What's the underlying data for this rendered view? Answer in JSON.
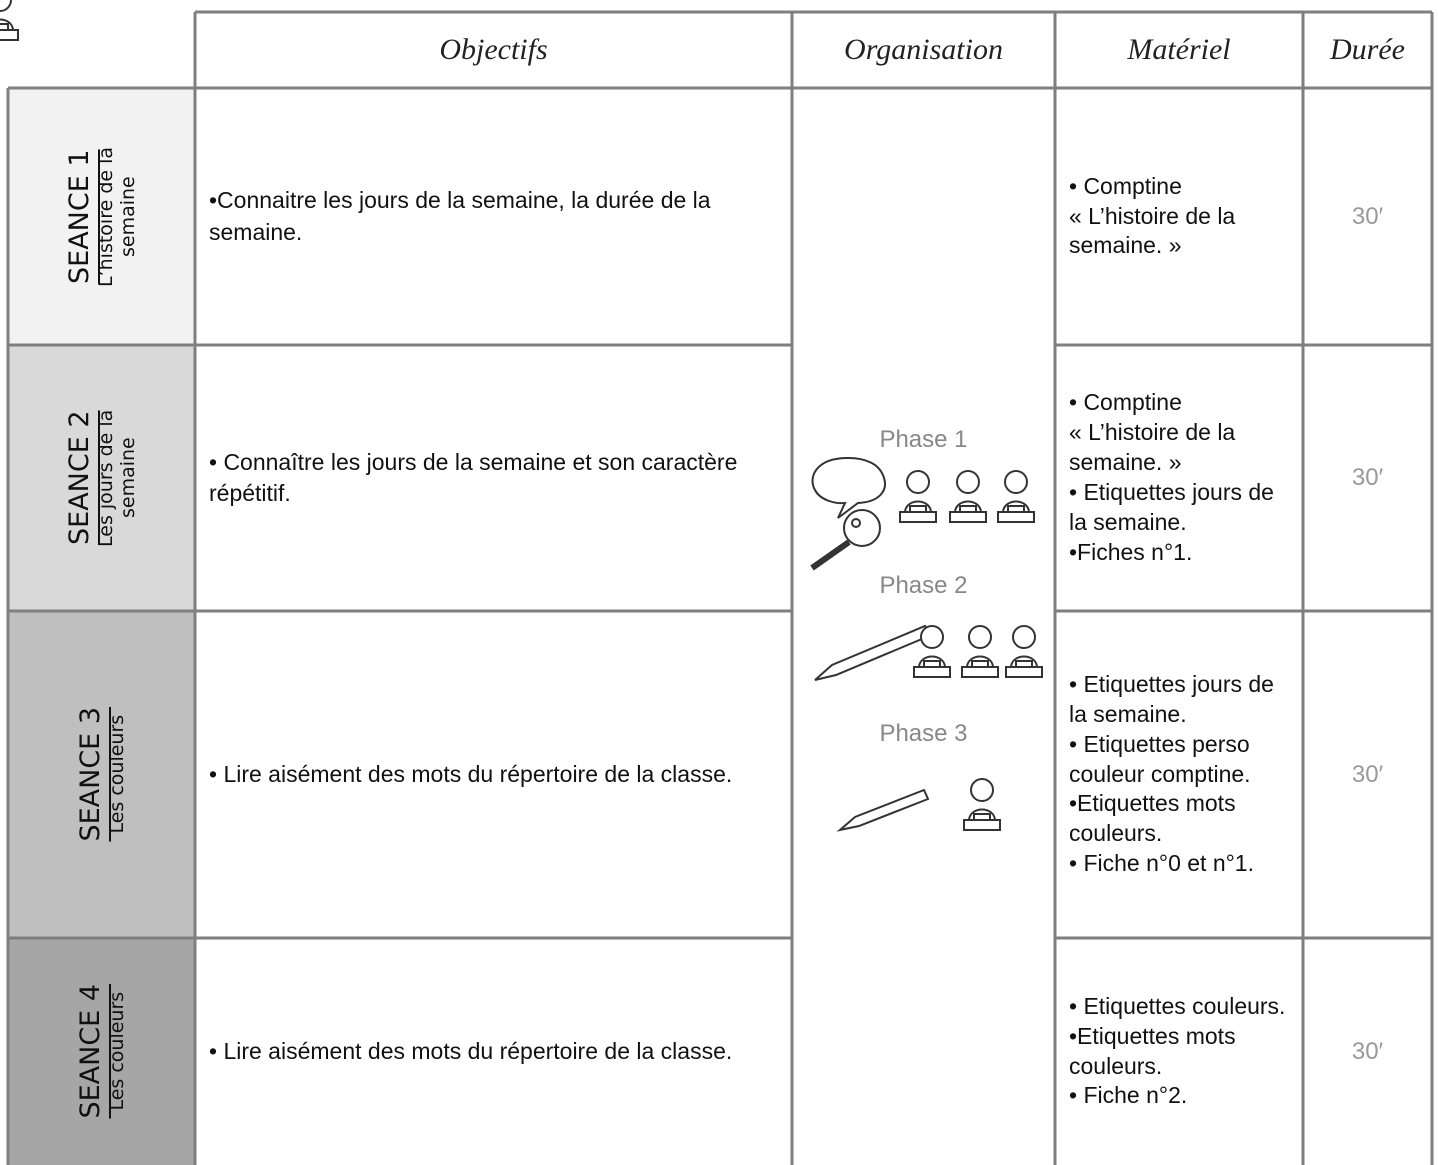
{
  "table": {
    "header": [
      "Objectifs",
      "Organisation",
      "Matériel",
      "Durée"
    ],
    "rows": [
      {
        "session": "SEANCE 1",
        "title": "L’histoire de la semaine",
        "objective": "•Connaitre les jours de la semaine, la durée de la semaine.",
        "material": [
          "• Comptine",
          "« L’histoire de la semaine. »"
        ],
        "duration": "30′"
      },
      {
        "session": "SEANCE 2",
        "title": "Les jours de la semaine",
        "objective": "• Connaître les jours de la semaine et son caractère répétitif.",
        "material": [
          "• Comptine",
          "« L’histoire de la semaine. »",
          "• Etiquettes jours de la semaine.",
          "•Fiches n°1."
        ],
        "duration": "30′"
      },
      {
        "session": "SEANCE 3",
        "title": "Les couleurs",
        "objective": "• Lire aisément des mots du répertoire de la classe.",
        "material": [
          "• Etiquettes jours de la semaine.",
          "• Etiquettes perso couleur comptine.",
          "•Etiquettes mots couleurs.",
          "• Fiche n°0 et n°1."
        ],
        "duration": "30′"
      },
      {
        "session": "SEANCE 4",
        "title": "Les couleurs",
        "objective": "• Lire aisément des mots du répertoire de la classe.",
        "material": [
          "• Etiquettes couleurs.",
          "•Etiquettes mots couleurs.",
          "• Fiche n°2."
        ],
        "duration": "30′"
      }
    ],
    "organisation": [
      "Phase 1",
      "Phase 2",
      "Phase 3"
    ]
  }
}
